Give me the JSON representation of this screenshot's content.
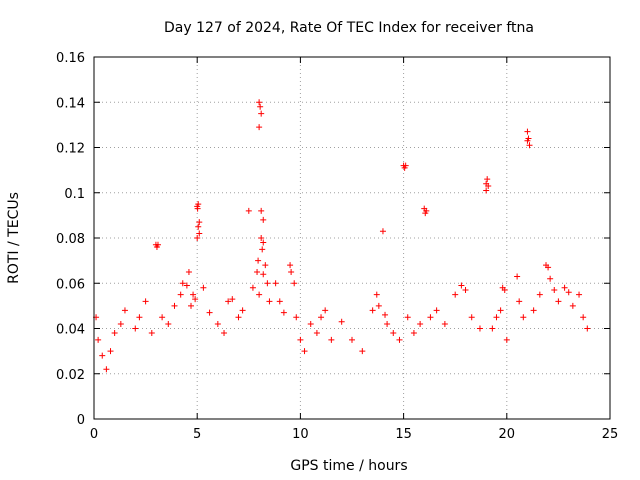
{
  "chart_data": {
    "type": "scatter",
    "title": "Day 127 of 2024, Rate Of TEC Index for receiver ftna",
    "xlabel": "GPS time / hours",
    "ylabel": "ROTI / TECUs",
    "xlim": [
      0,
      25
    ],
    "ylim": [
      0,
      0.16
    ],
    "xticks": [
      0,
      5,
      10,
      15,
      20,
      25
    ],
    "xtick_labels": [
      "0",
      "5",
      "10",
      "15",
      "20",
      "25"
    ],
    "yticks": [
      0,
      0.02,
      0.04,
      0.06,
      0.08,
      0.1,
      0.12,
      0.14,
      0.16
    ],
    "ytick_labels": [
      "0",
      "0.02",
      "0.04",
      "0.06",
      "0.08",
      "0.1",
      "0.12",
      "0.14",
      "0.16"
    ],
    "grid": true,
    "marker": "+",
    "color": "#ff0000",
    "series": [
      {
        "name": "ROTI",
        "points": [
          [
            0.1,
            0.045
          ],
          [
            0.2,
            0.035
          ],
          [
            0.4,
            0.028
          ],
          [
            0.6,
            0.022
          ],
          [
            0.8,
            0.03
          ],
          [
            1.0,
            0.038
          ],
          [
            1.3,
            0.042
          ],
          [
            1.5,
            0.048
          ],
          [
            2.0,
            0.04
          ],
          [
            2.2,
            0.045
          ],
          [
            2.5,
            0.052
          ],
          [
            2.8,
            0.038
          ],
          [
            3.0,
            0.077
          ],
          [
            3.05,
            0.076
          ],
          [
            3.1,
            0.077
          ],
          [
            3.3,
            0.045
          ],
          [
            3.6,
            0.042
          ],
          [
            3.9,
            0.05
          ],
          [
            4.2,
            0.055
          ],
          [
            4.3,
            0.06
          ],
          [
            4.5,
            0.059
          ],
          [
            4.6,
            0.065
          ],
          [
            4.7,
            0.05
          ],
          [
            4.8,
            0.055
          ],
          [
            4.9,
            0.053
          ],
          [
            5.0,
            0.094
          ],
          [
            5.02,
            0.093
          ],
          [
            5.05,
            0.095
          ],
          [
            5.1,
            0.087
          ],
          [
            5.05,
            0.085
          ],
          [
            5.0,
            0.08
          ],
          [
            5.1,
            0.082
          ],
          [
            5.3,
            0.058
          ],
          [
            5.6,
            0.047
          ],
          [
            6.0,
            0.042
          ],
          [
            6.3,
            0.038
          ],
          [
            6.5,
            0.052
          ],
          [
            6.7,
            0.053
          ],
          [
            7.0,
            0.045
          ],
          [
            7.2,
            0.048
          ],
          [
            7.5,
            0.092
          ],
          [
            7.7,
            0.058
          ],
          [
            7.9,
            0.065
          ],
          [
            7.95,
            0.07
          ],
          [
            8.0,
            0.14
          ],
          [
            8.05,
            0.138
          ],
          [
            8.1,
            0.135
          ],
          [
            8.0,
            0.129
          ],
          [
            8.1,
            0.092
          ],
          [
            8.2,
            0.088
          ],
          [
            8.1,
            0.08
          ],
          [
            8.2,
            0.078
          ],
          [
            8.15,
            0.075
          ],
          [
            8.3,
            0.068
          ],
          [
            8.4,
            0.06
          ],
          [
            8.2,
            0.064
          ],
          [
            8.0,
            0.055
          ],
          [
            8.5,
            0.052
          ],
          [
            8.8,
            0.06
          ],
          [
            9.0,
            0.052
          ],
          [
            9.2,
            0.047
          ],
          [
            9.5,
            0.068
          ],
          [
            9.55,
            0.065
          ],
          [
            9.7,
            0.06
          ],
          [
            9.8,
            0.045
          ],
          [
            10.0,
            0.035
          ],
          [
            10.2,
            0.03
          ],
          [
            10.5,
            0.042
          ],
          [
            10.8,
            0.038
          ],
          [
            11.0,
            0.045
          ],
          [
            11.2,
            0.048
          ],
          [
            11.5,
            0.035
          ],
          [
            12.0,
            0.043
          ],
          [
            12.5,
            0.035
          ],
          [
            13.0,
            0.03
          ],
          [
            13.5,
            0.048
          ],
          [
            13.7,
            0.055
          ],
          [
            13.8,
            0.05
          ],
          [
            14.0,
            0.083
          ],
          [
            14.1,
            0.046
          ],
          [
            14.2,
            0.042
          ],
          [
            14.5,
            0.038
          ],
          [
            14.8,
            0.035
          ],
          [
            15.0,
            0.112
          ],
          [
            15.05,
            0.111
          ],
          [
            15.1,
            0.112
          ],
          [
            15.2,
            0.045
          ],
          [
            15.5,
            0.038
          ],
          [
            15.8,
            0.042
          ],
          [
            16.0,
            0.093
          ],
          [
            16.05,
            0.091
          ],
          [
            16.1,
            0.092
          ],
          [
            16.3,
            0.045
          ],
          [
            16.6,
            0.048
          ],
          [
            17.0,
            0.042
          ],
          [
            17.5,
            0.055
          ],
          [
            17.8,
            0.059
          ],
          [
            18.0,
            0.057
          ],
          [
            18.3,
            0.045
          ],
          [
            18.7,
            0.04
          ],
          [
            19.0,
            0.104
          ],
          [
            19.05,
            0.106
          ],
          [
            19.1,
            0.103
          ],
          [
            19.0,
            0.101
          ],
          [
            19.3,
            0.04
          ],
          [
            19.5,
            0.045
          ],
          [
            19.7,
            0.048
          ],
          [
            19.8,
            0.058
          ],
          [
            19.9,
            0.057
          ],
          [
            20.0,
            0.035
          ],
          [
            20.5,
            0.063
          ],
          [
            20.6,
            0.052
          ],
          [
            20.8,
            0.045
          ],
          [
            21.0,
            0.127
          ],
          [
            21.05,
            0.124
          ],
          [
            21.1,
            0.121
          ],
          [
            21.0,
            0.123
          ],
          [
            21.3,
            0.048
          ],
          [
            21.6,
            0.055
          ],
          [
            21.9,
            0.068
          ],
          [
            22.0,
            0.067
          ],
          [
            22.1,
            0.062
          ],
          [
            22.3,
            0.057
          ],
          [
            22.5,
            0.052
          ],
          [
            22.8,
            0.058
          ],
          [
            23.0,
            0.056
          ],
          [
            23.2,
            0.05
          ],
          [
            23.5,
            0.055
          ],
          [
            23.7,
            0.045
          ],
          [
            23.9,
            0.04
          ]
        ]
      }
    ]
  }
}
